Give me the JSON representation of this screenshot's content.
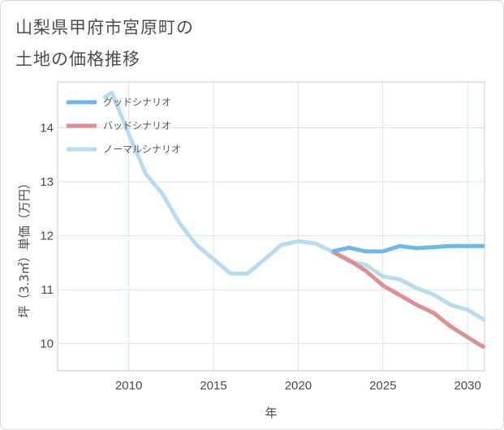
{
  "title_line1": "山梨県甲府市宮原町の",
  "title_line2": "土地の価格推移",
  "chart_data": {
    "type": "line",
    "xlabel": "年",
    "ylabel": "坪（3.3㎡）単価（万円）",
    "xlim": [
      2005.8,
      2031
    ],
    "ylim": [
      9.5,
      14.85
    ],
    "xticks": [
      2010,
      2015,
      2020,
      2025,
      2030
    ],
    "yticks": [
      10,
      11,
      12,
      13,
      14
    ],
    "grid": true,
    "legend_position": "top-left",
    "series": [
      {
        "name": "グッドシナリオ",
        "color": "#6cb8ea",
        "x": [
          2022,
          2023,
          2024,
          2025,
          2026,
          2027,
          2028,
          2029,
          2030,
          2031
        ],
        "y": [
          11.71,
          11.78,
          11.71,
          11.71,
          11.81,
          11.77,
          11.79,
          11.81,
          11.81,
          11.81
        ]
      },
      {
        "name": "バッドシナリオ",
        "color": "#de8f92",
        "x": [
          2022,
          2023,
          2024,
          2025,
          2026,
          2027,
          2028,
          2029,
          2030,
          2031
        ],
        "y": [
          11.71,
          11.55,
          11.35,
          11.08,
          10.9,
          10.72,
          10.57,
          10.32,
          10.12,
          9.93
        ]
      },
      {
        "name": "ノーマルシナリオ",
        "color": "#b6dcee",
        "x": [
          2008.5,
          2009,
          2010,
          2011,
          2012,
          2013,
          2014,
          2015,
          2016,
          2017,
          2018,
          2019,
          2020,
          2021,
          2022,
          2023,
          2024,
          2025,
          2026,
          2027,
          2028,
          2029,
          2030,
          2031
        ],
        "y": [
          14.55,
          14.65,
          13.88,
          13.15,
          12.77,
          12.23,
          11.83,
          11.57,
          11.3,
          11.3,
          11.56,
          11.83,
          11.9,
          11.86,
          11.71,
          11.53,
          11.46,
          11.25,
          11.19,
          11.03,
          10.91,
          10.72,
          10.63,
          10.44
        ]
      }
    ]
  }
}
